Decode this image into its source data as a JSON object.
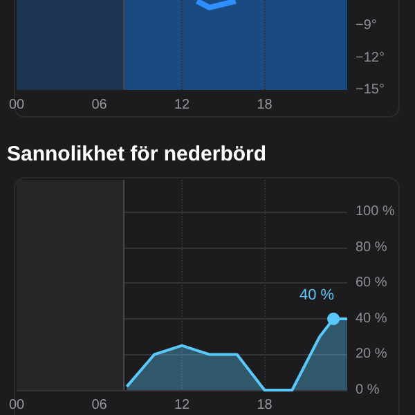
{
  "chart_data": [
    {
      "type": "line",
      "xlim": [
        0,
        24
      ],
      "xticks": [
        {
          "value": 0,
          "label": "00"
        },
        {
          "value": 6,
          "label": "06"
        },
        {
          "value": 12,
          "label": "12"
        },
        {
          "value": 18,
          "label": "18"
        }
      ],
      "ylim": [
        -15,
        -6.6
      ],
      "yticks": [
        {
          "value": -9,
          "label": "−9°"
        },
        {
          "value": -12,
          "label": "−12°"
        },
        {
          "value": -15,
          "label": "−15°"
        }
      ],
      "grid": "x",
      "series": [
        {
          "color": "#2f8fff",
          "x": [
            13.1,
            14.0,
            15.9
          ],
          "values": [
            -6.7,
            -7.3,
            -6.7
          ]
        }
      ],
      "bands": [
        {
          "axis": "x",
          "from": 0,
          "to": 7.8,
          "color": "#1d3550"
        }
      ],
      "ref_lines": [
        {
          "axis": "x",
          "value": 7.8,
          "color": "#48484a"
        }
      ]
    },
    {
      "type": "area",
      "title": "Sannolikhet för nederbörd",
      "xlim": [
        0,
        24
      ],
      "xticks": [
        {
          "value": 0,
          "label": "00"
        },
        {
          "value": 6,
          "label": "06"
        },
        {
          "value": 12,
          "label": "12"
        },
        {
          "value": 18,
          "label": "18"
        }
      ],
      "ylim": [
        0,
        118
      ],
      "yticks": [
        {
          "value": 0,
          "label": "0 %"
        },
        {
          "value": 20,
          "label": "20 %"
        },
        {
          "value": 40,
          "label": "40 %"
        },
        {
          "value": 60,
          "label": "60 %"
        },
        {
          "value": 80,
          "label": "80 %"
        },
        {
          "value": 100,
          "label": "100 %"
        }
      ],
      "grid": true,
      "series": [
        {
          "color": "#5ac8fa",
          "x": [
            8,
            10,
            12,
            14,
            16,
            18,
            20,
            22,
            23,
            24
          ],
          "values": [
            2,
            20,
            25,
            20,
            20,
            0,
            0,
            30,
            40,
            40
          ],
          "value_labels": [
            null,
            null,
            null,
            null,
            null,
            null,
            null,
            null,
            "40 %",
            null
          ]
        }
      ],
      "bands": [
        {
          "axis": "x",
          "from": 0,
          "to": 7.8,
          "color": "#262628"
        }
      ],
      "ref_lines": [
        {
          "axis": "x",
          "value": 7.8,
          "color": "#48484a"
        }
      ]
    }
  ]
}
